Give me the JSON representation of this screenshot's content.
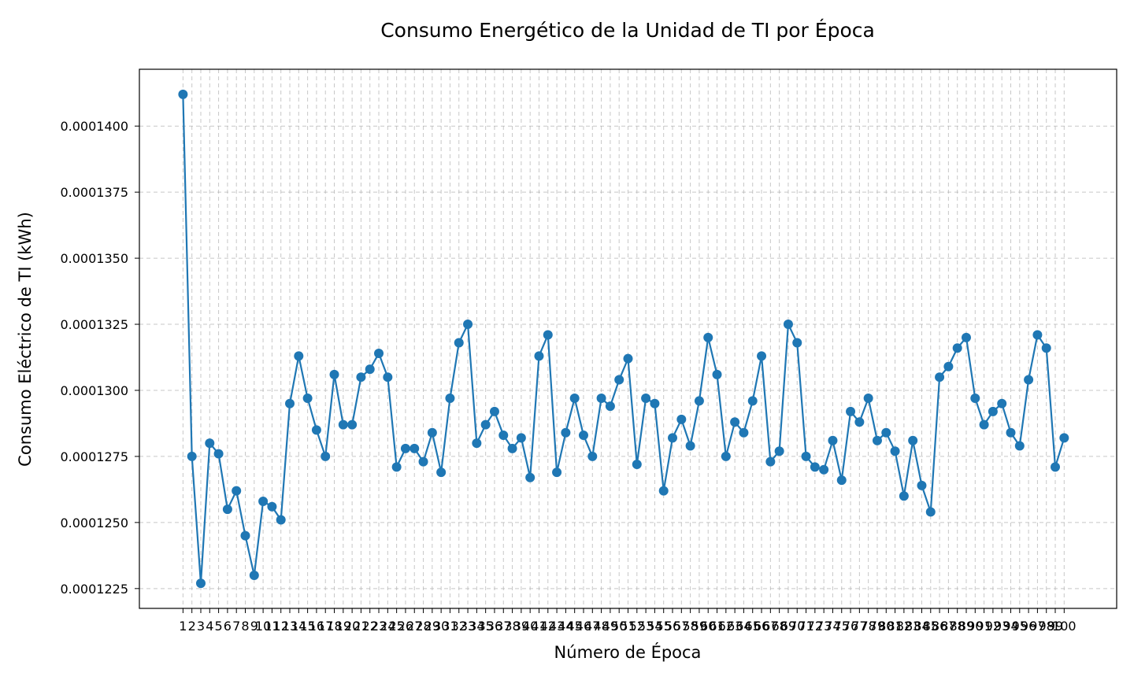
{
  "chart_data": {
    "type": "line",
    "title": "Consumo Energético de la Unidad de TI por Época",
    "xlabel": "Número de Época",
    "ylabel": "Consumo Eléctrico de TI (kWh)",
    "markers": true,
    "grid": true,
    "line_color": "#1f77b4",
    "ylim": [
      0.00012175,
      0.00014215
    ],
    "yticks": [
      0.0001225,
      0.000125,
      0.0001275,
      0.00013,
      0.0001325,
      0.000135,
      0.0001375,
      0.00014
    ],
    "ytick_labels": [
      "0.0001225",
      "0.0001250",
      "0.0001275",
      "0.0001300",
      "0.0001325",
      "0.0001350",
      "0.0001375",
      "0.0001400"
    ],
    "xlim": [
      -3.9,
      105.9
    ],
    "x": [
      1,
      2,
      3,
      4,
      5,
      6,
      7,
      8,
      9,
      10,
      11,
      12,
      13,
      14,
      15,
      16,
      17,
      18,
      19,
      20,
      21,
      22,
      23,
      24,
      25,
      26,
      27,
      28,
      29,
      30,
      31,
      32,
      33,
      34,
      35,
      36,
      37,
      38,
      39,
      40,
      41,
      42,
      43,
      44,
      45,
      46,
      47,
      48,
      49,
      50,
      51,
      52,
      53,
      54,
      55,
      56,
      57,
      58,
      59,
      60,
      61,
      62,
      63,
      64,
      65,
      66,
      67,
      68,
      69,
      70,
      71,
      72,
      73,
      74,
      75,
      76,
      77,
      78,
      79,
      80,
      81,
      82,
      83,
      84,
      85,
      86,
      87,
      88,
      89,
      90,
      91,
      92,
      93,
      94,
      95,
      96,
      97,
      98,
      99,
      100
    ],
    "series": [
      {
        "values": [
          0.0001412,
          0.0001275,
          0.0001227,
          0.000128,
          0.0001276,
          0.0001255,
          0.0001262,
          0.0001245,
          0.000123,
          0.0001258,
          0.0001256,
          0.0001251,
          0.0001295,
          0.0001313,
          0.0001297,
          0.0001285,
          0.0001275,
          0.0001306,
          0.0001287,
          0.0001287,
          0.0001305,
          0.0001308,
          0.0001314,
          0.0001305,
          0.0001271,
          0.0001278,
          0.0001278,
          0.0001273,
          0.0001284,
          0.0001269,
          0.0001297,
          0.0001318,
          0.0001325,
          0.000128,
          0.0001287,
          0.0001292,
          0.0001283,
          0.0001278,
          0.0001282,
          0.0001267,
          0.0001313,
          0.0001321,
          0.0001269,
          0.0001284,
          0.0001297,
          0.0001283,
          0.0001275,
          0.0001297,
          0.0001294,
          0.0001304,
          0.0001312,
          0.0001272,
          0.0001297,
          0.0001295,
          0.0001262,
          0.0001282,
          0.0001289,
          0.0001279,
          0.0001296,
          0.000132,
          0.0001306,
          0.0001275,
          0.0001288,
          0.0001284,
          0.0001296,
          0.0001313,
          0.0001273,
          0.0001277,
          0.0001325,
          0.0001318,
          0.0001275,
          0.0001271,
          0.000127,
          0.0001281,
          0.0001266,
          0.0001292,
          0.0001288,
          0.0001297,
          0.0001281,
          0.0001284,
          0.0001277,
          0.000126,
          0.0001281,
          0.0001264,
          0.0001254,
          0.0001305,
          0.0001309,
          0.0001316,
          0.000132,
          0.0001297,
          0.0001287,
          0.0001292,
          0.0001295,
          0.0001284,
          0.0001279,
          0.0001304,
          0.0001321,
          0.0001316,
          0.0001271,
          0.0001282
        ]
      }
    ]
  }
}
